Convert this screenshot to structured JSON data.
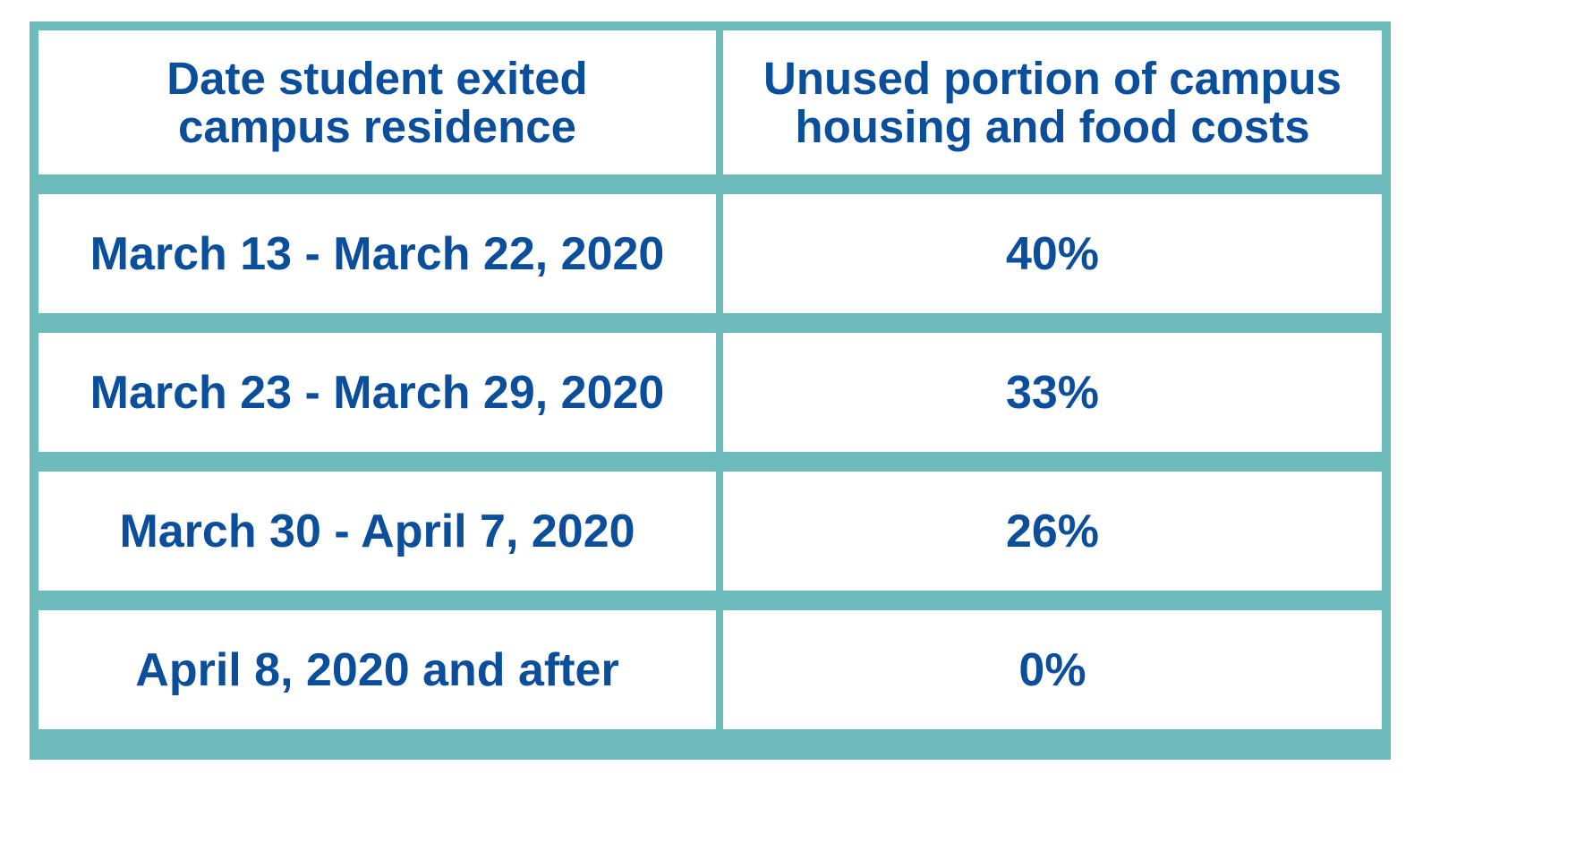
{
  "table": {
    "headers": [
      "Date student exited campus residence",
      "Unused portion of campus housing and food costs"
    ],
    "rows": [
      {
        "date": "March 13 - March 22, 2020",
        "unused": "40%"
      },
      {
        "date": "March 23 - March 29, 2020",
        "unused": "33%"
      },
      {
        "date": "March 30 - April 7, 2020",
        "unused": "26%"
      },
      {
        "date": "April 8, 2020 and after",
        "unused": "0%"
      }
    ]
  },
  "colors": {
    "border": "#6dbbbb",
    "text": "#0b4f9c",
    "cell_background": "#ffffff"
  }
}
